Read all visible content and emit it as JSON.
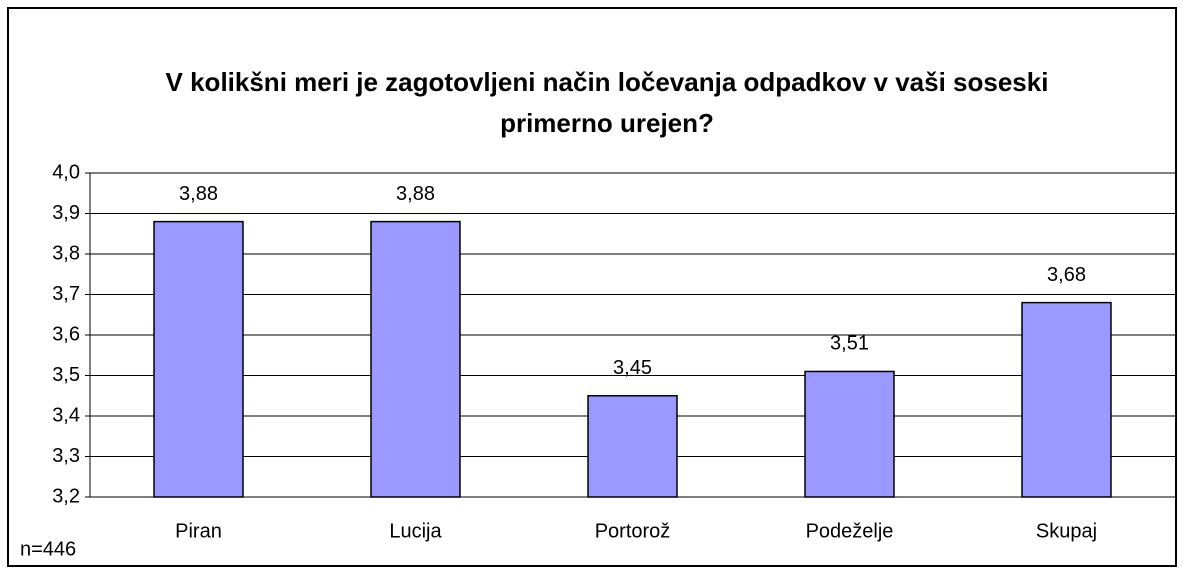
{
  "chart_data": {
    "type": "bar",
    "title": "V kolikšni meri je zagotovljeni način ločevanja odpadkov v vaši soseski primerno urejen?",
    "categories": [
      "Piran",
      "Lucija",
      "Portorož",
      "Podeželje",
      "Skupaj"
    ],
    "values": [
      3.88,
      3.88,
      3.45,
      3.51,
      3.68
    ],
    "value_labels": [
      "3,88",
      "3,88",
      "3,45",
      "3,51",
      "3,68"
    ],
    "color": "#9999ff",
    "ylim": [
      3.2,
      4.0
    ],
    "yticks": [
      {
        "value": 3.2,
        "label": "3,2"
      },
      {
        "value": 3.3,
        "label": "3,3"
      },
      {
        "value": 3.4,
        "label": "3,4"
      },
      {
        "value": 3.5,
        "label": "3,5"
      },
      {
        "value": 3.6,
        "label": "3,6"
      },
      {
        "value": 3.7,
        "label": "3,7"
      },
      {
        "value": 3.8,
        "label": "3,8"
      },
      {
        "value": 3.9,
        "label": "3,9"
      },
      {
        "value": 4.0,
        "label": "4,0"
      }
    ],
    "grid": true,
    "annotation": "n=446"
  }
}
